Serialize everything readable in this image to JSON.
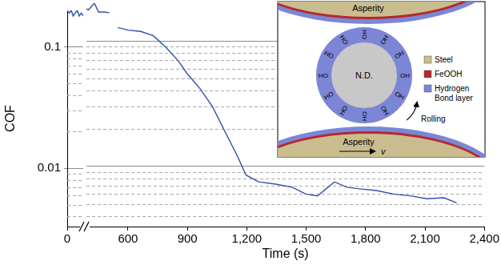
{
  "chart_data": [
    {
      "type": "line",
      "y_label": "COF",
      "color": "#2f4fae",
      "log": "y",
      "grid": true,
      "x": [
        0,
        10,
        20,
        30,
        40,
        50,
        60,
        70,
        80
      ],
      "values": [
        0.2,
        0.19,
        0.2,
        0.18,
        0.19,
        0.2,
        0.18,
        0.19,
        0.18
      ],
      "xlim": [
        0,
        80
      ],
      "xticks": [
        0
      ],
      "ylim": [
        0.0033,
        0.2
      ],
      "yticks": [
        0.01,
        0.1
      ]
    },
    {
      "type": "line",
      "x_label": "Time (s)",
      "color": "#2f4fae",
      "log": "y",
      "grid": true,
      "tick_labels": "x",
      "x": [
        390,
        400,
        430,
        451,
        480,
        506,
        528,
        549,
        600,
        664,
        728,
        791,
        855,
        898,
        962,
        1026,
        1089,
        1153,
        1196,
        1260,
        1345,
        1430,
        1498,
        1557,
        1600,
        1643,
        1706,
        1770,
        1855,
        1940,
        2026,
        2111,
        2196,
        2260
      ],
      "values": [
        0.18,
        0.177,
        0.2,
        0.17,
        0.17,
        0.168,
        null,
        0.128,
        0.122,
        0.119,
        0.11,
        0.089,
        0.069,
        0.055,
        0.042,
        0.03,
        0.019,
        0.012,
        0.0085,
        0.0075,
        0.0072,
        0.0068,
        0.006,
        0.0058,
        0.0066,
        0.0075,
        0.0068,
        0.0066,
        0.0064,
        0.006,
        0.0058,
        0.0055,
        0.0056,
        0.0051
      ],
      "xlim": [
        390,
        2400
      ],
      "xticks": [
        600,
        900,
        {
          "value": 1200,
          "label": "1,200"
        },
        {
          "value": 1500,
          "label": "1,500"
        },
        {
          "value": 1800,
          "label": "1,800"
        },
        {
          "value": 2100,
          "label": "2,100"
        },
        {
          "value": 2400,
          "label": "2,400"
        }
      ],
      "ylim": [
        0.0033,
        0.2
      ],
      "yticks": [
        0.01,
        0.1
      ]
    }
  ],
  "inset": {
    "top_label": "Asperity",
    "bottom_label": "Asperity",
    "particle_label": "N.D.",
    "ring_labels": [
      "OH",
      "OH",
      "OH",
      "OH",
      "HO",
      "HO",
      "HO",
      "HO",
      "HO",
      "OH",
      "OH",
      "OH"
    ],
    "motion_label": "Rolling",
    "velocity_label": "v",
    "key": [
      {
        "label": [
          "Steel"
        ],
        "color": "#c9bd8f"
      },
      {
        "label": [
          "FeOOH"
        ],
        "color": "#b5292c"
      },
      {
        "label": [
          "Hydrogen",
          "Bond layer"
        ],
        "color": "#7c86d6"
      }
    ]
  }
}
